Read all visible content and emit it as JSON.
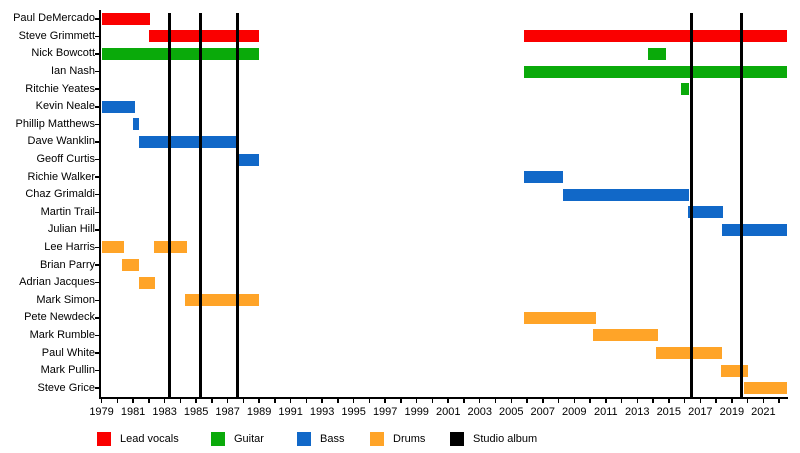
{
  "chart_data": {
    "type": "gantt-timeline",
    "description": "Band member tenure timeline with studio album release markers",
    "x_axis": {
      "min": 1978.9,
      "max": 2022.5,
      "minor_tick_every_years": 1,
      "label_years": [
        1979,
        1981,
        1983,
        1985,
        1987,
        1989,
        1991,
        1993,
        1995,
        1997,
        1999,
        2001,
        2003,
        2005,
        2007,
        2009,
        2011,
        2013,
        2015,
        2017,
        2019,
        2021
      ]
    },
    "album_lines": [
      1983.3,
      1985.3,
      1987.65,
      2016.45,
      2019.6
    ],
    "rows": [
      {
        "name": "Paul DeMercado",
        "segments": [
          {
            "role": "lead_vocals",
            "start": 1979,
            "end": 1982.1
          }
        ]
      },
      {
        "name": "Steve Grimmett",
        "segments": [
          {
            "role": "lead_vocals",
            "start": 1982,
            "end": 1989
          },
          {
            "role": "lead_vocals",
            "start": 2005.8,
            "end": 2022.5
          }
        ]
      },
      {
        "name": "Nick Bowcott",
        "segments": [
          {
            "role": "guitar",
            "start": 1979,
            "end": 1989
          },
          {
            "role": "guitar",
            "start": 2013.7,
            "end": 2014.8
          }
        ]
      },
      {
        "name": "Ian Nash",
        "segments": [
          {
            "role": "guitar",
            "start": 2005.8,
            "end": 2022.5
          }
        ]
      },
      {
        "name": "Ritchie Yeates",
        "segments": [
          {
            "role": "guitar",
            "start": 2015.8,
            "end": 2016.3
          }
        ]
      },
      {
        "name": "Kevin Neale",
        "segments": [
          {
            "role": "bass",
            "start": 1979,
            "end": 1981.1
          }
        ]
      },
      {
        "name": "Phillip Matthews",
        "segments": [
          {
            "role": "bass",
            "start": 1981,
            "end": 1981.4
          }
        ]
      },
      {
        "name": "Dave Wanklin",
        "segments": [
          {
            "role": "bass",
            "start": 1981.4,
            "end": 1987.7
          }
        ]
      },
      {
        "name": "Geoff Curtis",
        "segments": [
          {
            "role": "bass",
            "start": 1987.7,
            "end": 1989
          }
        ]
      },
      {
        "name": "Richie Walker",
        "segments": [
          {
            "role": "bass",
            "start": 2005.8,
            "end": 2008.3
          }
        ]
      },
      {
        "name": "Chaz Grimaldi",
        "segments": [
          {
            "role": "bass",
            "start": 2008.3,
            "end": 2016.3
          }
        ]
      },
      {
        "name": "Martin Trail",
        "segments": [
          {
            "role": "bass",
            "start": 2016.2,
            "end": 2018.45
          }
        ]
      },
      {
        "name": "Julian Hill",
        "segments": [
          {
            "role": "bass",
            "start": 2018.4,
            "end": 2022.5
          }
        ]
      },
      {
        "name": "Lee Harris",
        "segments": [
          {
            "role": "drums",
            "start": 1979,
            "end": 1980.45
          },
          {
            "role": "drums",
            "start": 1982.3,
            "end": 1984.4
          }
        ]
      },
      {
        "name": "Brian Parry",
        "segments": [
          {
            "role": "drums",
            "start": 1980.3,
            "end": 1981.4
          }
        ]
      },
      {
        "name": "Adrian Jacques",
        "segments": [
          {
            "role": "drums",
            "start": 1981.4,
            "end": 1982.4
          }
        ]
      },
      {
        "name": "Mark Simon",
        "segments": [
          {
            "role": "drums",
            "start": 1984.3,
            "end": 1989
          }
        ]
      },
      {
        "name": "Pete Newdeck",
        "segments": [
          {
            "role": "drums",
            "start": 2005.8,
            "end": 2010.4
          }
        ]
      },
      {
        "name": "Mark Rumble",
        "segments": [
          {
            "role": "drums",
            "start": 2010.2,
            "end": 2014.3
          }
        ]
      },
      {
        "name": "Paul White",
        "segments": [
          {
            "role": "drums",
            "start": 2014.2,
            "end": 2018.4
          }
        ]
      },
      {
        "name": "Mark Pullin",
        "segments": [
          {
            "role": "drums",
            "start": 2018.3,
            "end": 2020
          }
        ]
      },
      {
        "name": "Steve Grice",
        "segments": [
          {
            "role": "drums",
            "start": 2019.8,
            "end": 2022.5
          }
        ]
      }
    ],
    "legend": [
      {
        "key": "lead_vocals",
        "label": "Lead vocals",
        "color": "#fa0000"
      },
      {
        "key": "guitar",
        "label": "Guitar",
        "color": "#0aaa0a"
      },
      {
        "key": "bass",
        "label": "Bass",
        "color": "#1168c8"
      },
      {
        "key": "drums",
        "label": "Drums",
        "color": "#ffa428"
      },
      {
        "key": "album",
        "label": "Studio album",
        "color": "#000000"
      }
    ]
  }
}
